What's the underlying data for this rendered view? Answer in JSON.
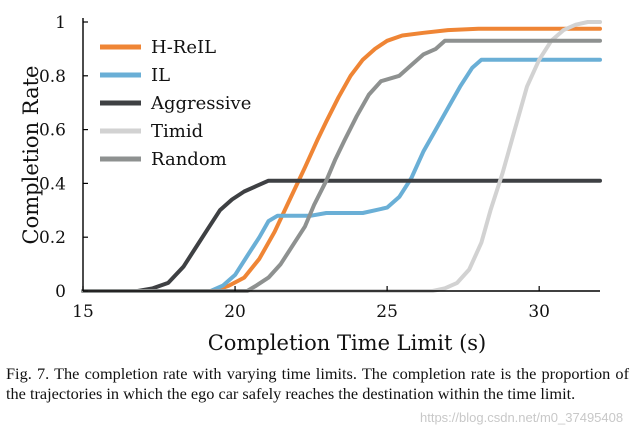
{
  "chart_data": {
    "type": "line",
    "title": "",
    "xlabel": "Completion Time Limit (s)",
    "ylabel": "Completion Rate",
    "xlim": [
      15,
      32
    ],
    "ylim": [
      0,
      1
    ],
    "xticks": [
      15,
      20,
      25,
      30
    ],
    "yticks": [
      0,
      0.2,
      0.4,
      0.6,
      0.8,
      1
    ],
    "ytick_labels": [
      "0",
      "0.2",
      "0.4",
      "0.6",
      "0.8",
      "1"
    ],
    "grid": false,
    "legend_position": "top-left",
    "series": [
      {
        "name": "H-ReIL",
        "color": "#ef8535",
        "points": [
          [
            15,
            0
          ],
          [
            19.3,
            0
          ],
          [
            19.8,
            0.02
          ],
          [
            20.3,
            0.05
          ],
          [
            20.8,
            0.12
          ],
          [
            21.3,
            0.22
          ],
          [
            21.8,
            0.34
          ],
          [
            22.3,
            0.46
          ],
          [
            22.7,
            0.56
          ],
          [
            23.0,
            0.63
          ],
          [
            23.4,
            0.72
          ],
          [
            23.8,
            0.8
          ],
          [
            24.2,
            0.86
          ],
          [
            24.6,
            0.9
          ],
          [
            25.0,
            0.93
          ],
          [
            25.5,
            0.95
          ],
          [
            26.2,
            0.96
          ],
          [
            27,
            0.97
          ],
          [
            28,
            0.975
          ],
          [
            32,
            0.975
          ]
        ]
      },
      {
        "name": "IL",
        "color": "#6aafd6",
        "points": [
          [
            15,
            0
          ],
          [
            19.2,
            0
          ],
          [
            19.6,
            0.02
          ],
          [
            20.0,
            0.06
          ],
          [
            20.4,
            0.13
          ],
          [
            20.8,
            0.2
          ],
          [
            21.1,
            0.26
          ],
          [
            21.4,
            0.28
          ],
          [
            22.5,
            0.28
          ],
          [
            23.0,
            0.29
          ],
          [
            24.2,
            0.29
          ],
          [
            24.6,
            0.3
          ],
          [
            25.0,
            0.31
          ],
          [
            25.4,
            0.35
          ],
          [
            25.8,
            0.42
          ],
          [
            26.2,
            0.52
          ],
          [
            26.6,
            0.6
          ],
          [
            27.0,
            0.68
          ],
          [
            27.4,
            0.76
          ],
          [
            27.8,
            0.83
          ],
          [
            28.1,
            0.86
          ],
          [
            32,
            0.86
          ]
        ]
      },
      {
        "name": "Aggressive",
        "color": "#3e4043",
        "points": [
          [
            15,
            0
          ],
          [
            16.8,
            0
          ],
          [
            17.3,
            0.01
          ],
          [
            17.8,
            0.03
          ],
          [
            18.3,
            0.09
          ],
          [
            18.7,
            0.16
          ],
          [
            19.1,
            0.23
          ],
          [
            19.5,
            0.3
          ],
          [
            19.9,
            0.34
          ],
          [
            20.3,
            0.37
          ],
          [
            20.7,
            0.39
          ],
          [
            21.1,
            0.41
          ],
          [
            32,
            0.41
          ]
        ]
      },
      {
        "name": "Timid",
        "color": "#d2d2d2",
        "points": [
          [
            15,
            0
          ],
          [
            26.5,
            0
          ],
          [
            26.9,
            0.01
          ],
          [
            27.3,
            0.03
          ],
          [
            27.7,
            0.08
          ],
          [
            28.1,
            0.18
          ],
          [
            28.4,
            0.3
          ],
          [
            28.8,
            0.44
          ],
          [
            29.2,
            0.6
          ],
          [
            29.6,
            0.76
          ],
          [
            30.0,
            0.86
          ],
          [
            30.4,
            0.93
          ],
          [
            30.8,
            0.97
          ],
          [
            31.2,
            0.99
          ],
          [
            31.6,
            1.0
          ],
          [
            32,
            1.0
          ]
        ]
      },
      {
        "name": "Random",
        "color": "#8e9190",
        "points": [
          [
            15,
            0
          ],
          [
            20.4,
            0
          ],
          [
            20.7,
            0.02
          ],
          [
            21.1,
            0.05
          ],
          [
            21.5,
            0.1
          ],
          [
            21.9,
            0.17
          ],
          [
            22.3,
            0.24
          ],
          [
            22.6,
            0.32
          ],
          [
            23.0,
            0.41
          ],
          [
            23.3,
            0.49
          ],
          [
            23.6,
            0.56
          ],
          [
            24.0,
            0.65
          ],
          [
            24.4,
            0.73
          ],
          [
            24.8,
            0.78
          ],
          [
            25.4,
            0.8
          ],
          [
            25.8,
            0.84
          ],
          [
            26.2,
            0.88
          ],
          [
            26.6,
            0.9
          ],
          [
            26.9,
            0.93
          ],
          [
            32,
            0.93
          ]
        ]
      }
    ]
  },
  "caption": {
    "text": "Fig. 7.   The completion rate with varying time limits. The completion rate is the proportion of the trajectories in which the ego car safely reaches the destination within the time limit."
  },
  "watermark": "https://blog.csdn.net/m0_37495408"
}
